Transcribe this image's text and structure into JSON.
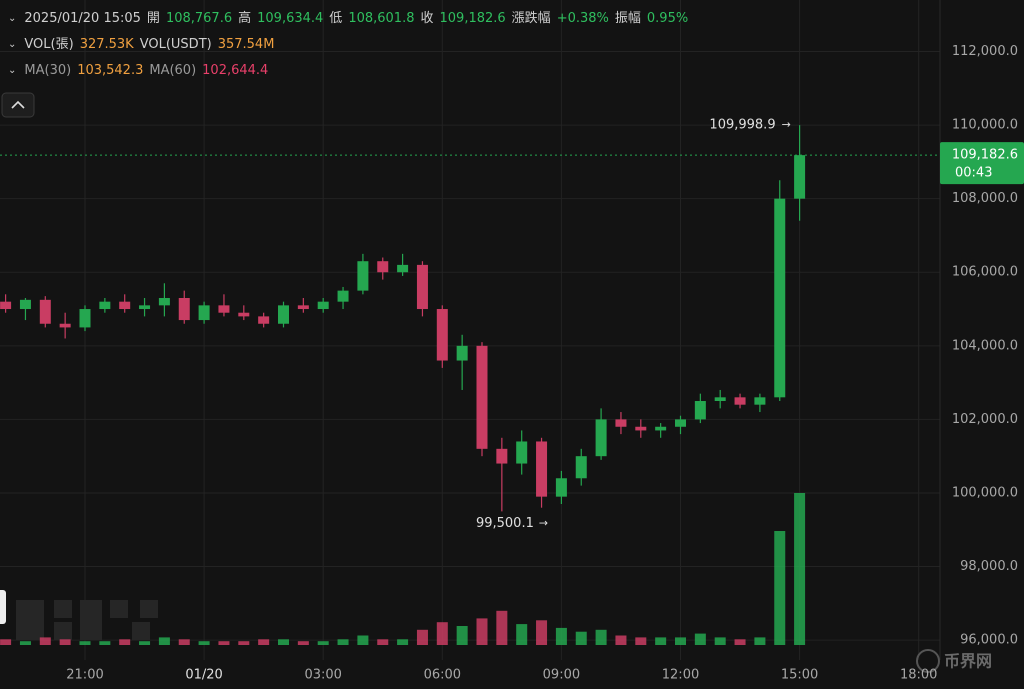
{
  "chart_data": {
    "type": "candlestick",
    "header": [
      [
        {
          "text": "2025/01/20 15:05",
          "color": "#d0d0d0"
        },
        {
          "text": "開",
          "color": "#d0d0d0"
        },
        {
          "text": "108,767.6",
          "color": "#2fbf5f"
        },
        {
          "text": "高",
          "color": "#d0d0d0"
        },
        {
          "text": "109,634.4",
          "color": "#2fbf5f"
        },
        {
          "text": "低",
          "color": "#d0d0d0"
        },
        {
          "text": "108,601.8",
          "color": "#2fbf5f"
        },
        {
          "text": "收",
          "color": "#d0d0d0"
        },
        {
          "text": "109,182.6",
          "color": "#2fbf5f"
        },
        {
          "text": "漲跌幅",
          "color": "#d0d0d0"
        },
        {
          "text": "+0.38%",
          "color": "#2fbf5f"
        },
        {
          "text": "振幅",
          "color": "#d0d0d0"
        },
        {
          "text": "0.95%",
          "color": "#2fbf5f"
        }
      ],
      [
        {
          "text": "VOL(張)",
          "color": "#d0d0d0"
        },
        {
          "text": "327.53K",
          "color": "#f0a040"
        },
        {
          "text": "VOL(USDT)",
          "color": "#d0d0d0"
        },
        {
          "text": "357.54M",
          "color": "#f0a040"
        }
      ],
      [
        {
          "text": "MA(30)",
          "color": "#9a9a9a"
        },
        {
          "text": "103,542.3",
          "color": "#f0a040"
        },
        {
          "text": "MA(60)",
          "color": "#9a9a9a"
        },
        {
          "text": "102,644.4",
          "color": "#e8406a"
        }
      ]
    ],
    "categories": [
      null,
      null,
      null,
      null,
      "21:00",
      null,
      null,
      null,
      null,
      null,
      "01/20",
      null,
      null,
      null,
      null,
      null,
      "03:00",
      null,
      null,
      null,
      null,
      null,
      "06:00",
      null,
      null,
      null,
      null,
      null,
      "09:00",
      null,
      null,
      null,
      null,
      null,
      "12:00",
      null,
      null,
      null,
      null,
      null,
      "15:00",
      null,
      null,
      null,
      null,
      null,
      "18:00"
    ],
    "open": [
      105200,
      105000,
      105250,
      104600,
      104500,
      105000,
      105200,
      105000,
      105100,
      105300,
      104700,
      105100,
      104900,
      104800,
      104600,
      105100,
      105000,
      105200,
      105500,
      106300,
      106000,
      106200,
      105000,
      103600,
      104000,
      101200,
      100800,
      101400,
      99900,
      100400,
      101000,
      102000,
      101800,
      101700,
      101800,
      102000,
      102500,
      102600,
      102400,
      102600,
      108000,
      null,
      null,
      null,
      null,
      null,
      null
    ],
    "high": [
      105400,
      105300,
      105350,
      104900,
      105100,
      105300,
      105400,
      105300,
      105700,
      105500,
      105200,
      105400,
      105100,
      104900,
      105200,
      105300,
      105300,
      105600,
      106500,
      106400,
      106500,
      106300,
      105100,
      104300,
      104100,
      101500,
      101700,
      101500,
      100600,
      101200,
      102300,
      102200,
      102000,
      101900,
      102100,
      102700,
      102800,
      102700,
      102700,
      108500,
      109998.9,
      null,
      null,
      null,
      null,
      null,
      null
    ],
    "low": [
      104900,
      104700,
      104500,
      104200,
      104400,
      104900,
      104900,
      104800,
      104800,
      104600,
      104600,
      104800,
      104700,
      104500,
      104500,
      104900,
      104900,
      105000,
      105400,
      105800,
      105900,
      104800,
      103400,
      102800,
      101000,
      99500.1,
      100500,
      99600,
      99700,
      100200,
      100900,
      101600,
      101500,
      101500,
      101600,
      101900,
      102300,
      102300,
      102200,
      102500,
      107400,
      null,
      null,
      null,
      null,
      null,
      null
    ],
    "close": [
      105000,
      105250,
      104600,
      104500,
      105000,
      105200,
      105000,
      105100,
      105300,
      104700,
      105100,
      104900,
      104800,
      104600,
      105100,
      105000,
      105200,
      105500,
      106300,
      106000,
      106200,
      105000,
      103600,
      104000,
      101200,
      100800,
      101400,
      99900,
      100400,
      101000,
      102000,
      101800,
      101700,
      101800,
      102000,
      102500,
      102600,
      102400,
      102600,
      108000,
      109182.6,
      null,
      null,
      null,
      null,
      null,
      null
    ],
    "volume": [
      3,
      2,
      4,
      3,
      2,
      2,
      3,
      2,
      4,
      3,
      2,
      2,
      2,
      3,
      3,
      2,
      2,
      3,
      5,
      3,
      3,
      8,
      12,
      10,
      14,
      18,
      11,
      13,
      9,
      7,
      8,
      5,
      4,
      4,
      4,
      6,
      4,
      3,
      4,
      60,
      80,
      null,
      null,
      null,
      null,
      null,
      null
    ],
    "volume_lim": [
      0,
      100
    ],
    "up_color": "#25a750",
    "down_color": "#c93d63",
    "ylim": [
      95460,
      113400
    ],
    "yticks": [
      {
        "value": 96000,
        "label": "96,000.0"
      },
      {
        "value": 98000,
        "label": "98,000.0"
      },
      {
        "value": 100000,
        "label": "100,000.0"
      },
      {
        "value": 102000,
        "label": "102,000.0"
      },
      {
        "value": 104000,
        "label": "104,000.0"
      },
      {
        "value": 106000,
        "label": "106,000.0"
      },
      {
        "value": 108000,
        "label": "108,000.0"
      },
      {
        "value": 110000,
        "label": "110,000.0"
      },
      {
        "value": 112000,
        "label": "112,000.0"
      }
    ],
    "grid": true,
    "last_price": 109182.6,
    "last_price_label": "109,182.6",
    "countdown": "00:43",
    "max_label": "109,998.9",
    "min_label": "99,500.1",
    "watermark": "币界网"
  }
}
